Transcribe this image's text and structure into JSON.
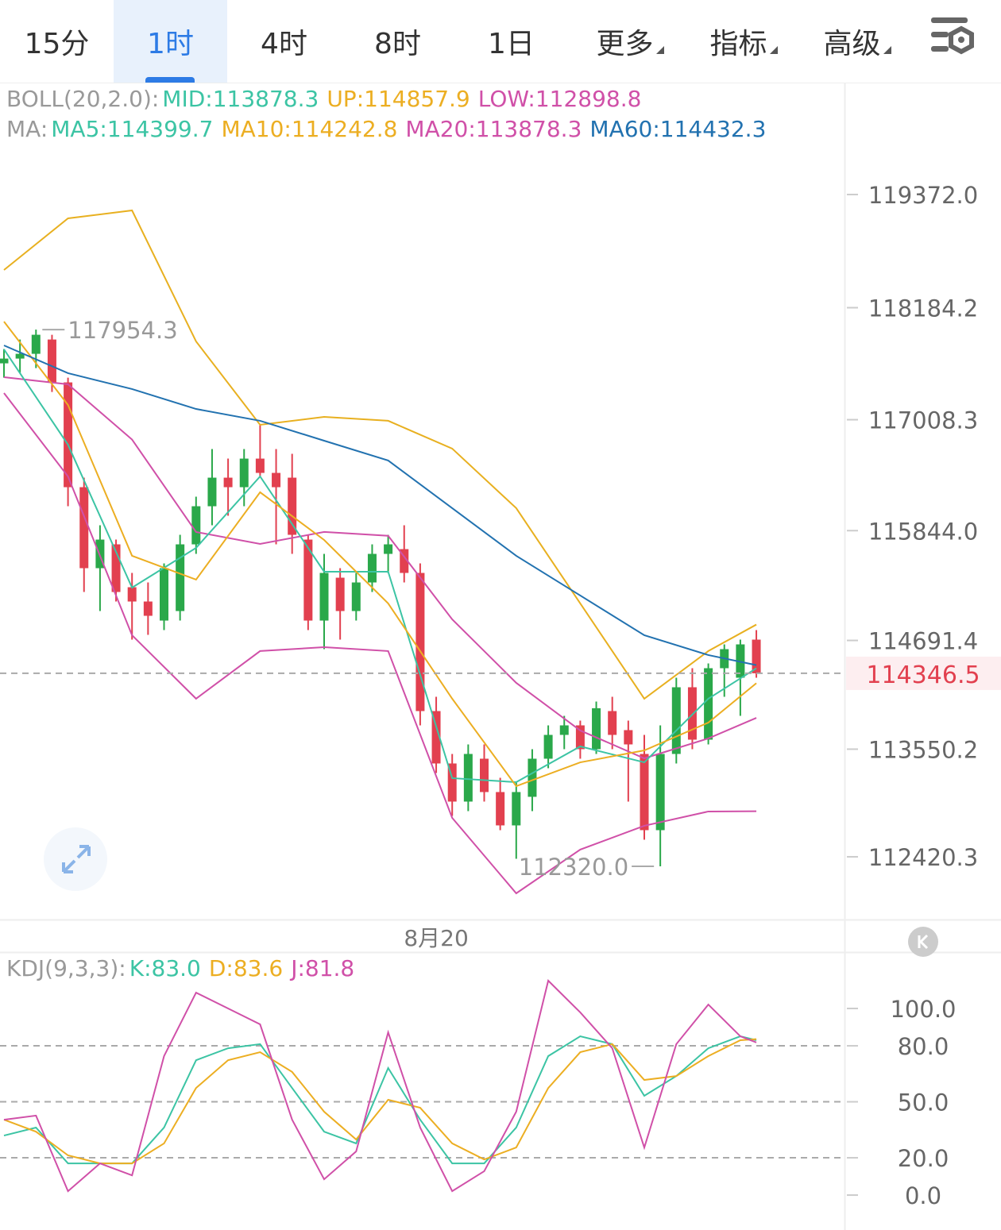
{
  "tabs": [
    {
      "label": "15分"
    },
    {
      "label": "1时",
      "active": true
    },
    {
      "label": "4时"
    },
    {
      "label": "8时"
    },
    {
      "label": "1日"
    },
    {
      "label": "更多",
      "dropdown": true
    },
    {
      "label": "指标",
      "dropdown": true
    },
    {
      "label": "高级",
      "dropdown": true
    }
  ],
  "chart_data": [
    {
      "type": "candlestick",
      "categories": [
        null,
        null,
        null,
        null,
        null,
        null,
        null,
        null,
        null,
        null,
        null,
        null,
        null,
        null,
        null,
        null,
        null,
        null,
        null,
        null,
        null,
        null,
        null,
        null,
        null,
        null,
        null,
        "8月20",
        null,
        null,
        null,
        null,
        null,
        null,
        null,
        null,
        null,
        null,
        null,
        null,
        null,
        null,
        null,
        null,
        null,
        null,
        null,
        null
      ],
      "open": [
        117600,
        117650,
        117700,
        117850,
        117400,
        116300,
        115450,
        115700,
        115250,
        115100,
        114900,
        115000,
        115700,
        116100,
        116400,
        116300,
        116600,
        116450,
        116400,
        115750,
        114900,
        115350,
        115000,
        115300,
        115600,
        115650,
        115400,
        113950,
        113400,
        113000,
        113450,
        113100,
        112750,
        113050,
        113450,
        113700,
        113800,
        113550,
        113950,
        113750,
        113500,
        112700,
        113500,
        114200,
        113650,
        114400,
        114300,
        114700
      ],
      "high": [
        117750,
        117850,
        117954.3,
        117900,
        117450,
        116400,
        115900,
        115750,
        115400,
        115300,
        115500,
        115800,
        116200,
        116700,
        116600,
        116700,
        116950,
        116700,
        116650,
        115800,
        115600,
        115450,
        115400,
        115700,
        115800,
        115900,
        115500,
        114100,
        113500,
        113600,
        113600,
        113250,
        113200,
        113550,
        113800,
        113900,
        113850,
        114050,
        114100,
        113850,
        113700,
        113800,
        114300,
        114400,
        114450,
        114650,
        114700,
        114800
      ],
      "low": [
        117450,
        117500,
        117550,
        117300,
        116100,
        115200,
        115000,
        115100,
        114700,
        114750,
        114800,
        114900,
        115600,
        115900,
        116000,
        116100,
        116400,
        115700,
        115600,
        114800,
        114600,
        114700,
        114900,
        115200,
        115400,
        115300,
        113800,
        113300,
        112850,
        112900,
        113000,
        112700,
        112400,
        112900,
        113350,
        113550,
        113450,
        113500,
        113550,
        113000,
        112600,
        112320,
        113400,
        113550,
        113600,
        114100,
        113900,
        114300
      ],
      "close": [
        117650,
        117700,
        117900,
        117400,
        116300,
        115450,
        115750,
        115200,
        115100,
        114950,
        115450,
        115700,
        116100,
        116400,
        116300,
        116600,
        116450,
        116300,
        115800,
        114900,
        115400,
        115000,
        115300,
        115600,
        115700,
        115400,
        113950,
        113400,
        113000,
        113500,
        113100,
        112750,
        113100,
        113450,
        113700,
        113800,
        113550,
        113980,
        113700,
        113600,
        112700,
        113500,
        114200,
        113650,
        114400,
        114600,
        114650,
        114346.5
      ],
      "up_color": "#2aa84a",
      "down_color": "#e2404f",
      "ylim": [
        111762,
        120547
      ],
      "yticks": [
        {
          "value": 119372,
          "label": "119372.0"
        },
        {
          "value": 118184.2,
          "label": "118184.2"
        },
        {
          "value": 117008.3,
          "label": "117008.3"
        },
        {
          "value": 115844,
          "label": "115844.0"
        },
        {
          "value": 114691.4,
          "label": "114691.4"
        },
        {
          "value": 113550.2,
          "label": "113550.2"
        },
        {
          "value": 112420.3,
          "label": "112420.3"
        }
      ],
      "last_price": 114346.5,
      "high_label": 117954.3,
      "low_label": {
        "value": 112320,
        "label": "112320.0"
      },
      "series": [
        {
          "color": "#e8b020",
          "x": [
            0,
            4,
            8,
            12,
            16,
            20,
            24,
            28,
            32,
            36,
            40,
            44,
            47
          ],
          "values": [
            118580,
            119122,
            119205,
            117830,
            116955,
            117038,
            116997,
            116705,
            116080,
            115080,
            114080,
            114580,
            114857.9
          ]
        },
        {
          "color": "#d050a8",
          "x": [
            0,
            4,
            8,
            12,
            16,
            20,
            24,
            28,
            32,
            36,
            40,
            44,
            47
          ],
          "values": [
            117455,
            117380,
            116800,
            115830,
            115705,
            115830,
            115790,
            114913,
            114246,
            113746,
            113454,
            113663,
            113878.3
          ]
        },
        {
          "color": "#d050a8",
          "x": [
            0,
            4,
            8,
            12,
            16,
            20,
            24,
            28,
            32,
            36,
            40,
            44,
            47
          ],
          "values": [
            117288,
            116413,
            114746,
            114080,
            114580,
            114621,
            114580,
            112829,
            112037,
            112496,
            112746,
            112896,
            112898.8
          ]
        },
        {
          "color": "#3cc4a4",
          "x": [
            0,
            4,
            8,
            12,
            16,
            20,
            24,
            28,
            32,
            36,
            40,
            44,
            47
          ],
          "values": [
            117747,
            116746,
            115246,
            115663,
            116413,
            115413,
            115413,
            113246,
            113204,
            113579,
            113412,
            114080,
            114399.7
          ]
        },
        {
          "color": "#ecae22",
          "x": [
            0,
            4,
            8,
            12,
            16,
            20,
            24,
            28,
            32,
            36,
            40,
            44,
            47
          ],
          "values": [
            118038,
            117163,
            115580,
            115330,
            116247,
            115746,
            115080,
            114080,
            113162,
            113412,
            113537,
            113829,
            114242.8
          ]
        },
        {
          "color": "#2272b0",
          "x": [
            0,
            4,
            8,
            12,
            16,
            20,
            24,
            28,
            32,
            36,
            40,
            44,
            47
          ],
          "values": [
            117788,
            117497,
            117330,
            117121,
            116997,
            116788,
            116580,
            116080,
            115580,
            115163,
            114746,
            114538,
            114432.3
          ]
        }
      ],
      "legends": [
        {
          "prefix": "BOLL(20,2.0):",
          "items": [
            {
              "label": "MID:113878.3",
              "color": "#3cc4a4"
            },
            {
              "label": "UP:114857.9",
              "color": "#ecae22"
            },
            {
              "label": "LOW:112898.8",
              "color": "#d050a8"
            }
          ]
        },
        {
          "prefix": "MA:",
          "items": [
            {
              "label": "MA5:114399.7",
              "color": "#3cc4a4"
            },
            {
              "label": "MA10:114242.8",
              "color": "#ecae22"
            },
            {
              "label": "MA20:113878.3",
              "color": "#d050a8"
            },
            {
              "label": "MA60:114432.3",
              "color": "#2272b0"
            }
          ]
        }
      ]
    },
    {
      "type": "line",
      "title": "KDJ(9,3,3):",
      "x": [
        0,
        2,
        4,
        6,
        8,
        10,
        12,
        14,
        16,
        18,
        20,
        22,
        24,
        26,
        28,
        30,
        32,
        34,
        36,
        38,
        40,
        42,
        44,
        46,
        47
      ],
      "series": [
        {
          "name": "K:83.0",
          "color": "#3cc4a4",
          "values": [
            31.9,
            36.2,
            17.0,
            17.0,
            17.0,
            36.2,
            72.3,
            78.7,
            80.9,
            57.4,
            34.0,
            27.7,
            68.1,
            40.4,
            17.0,
            17.0,
            36.2,
            74.5,
            85.1,
            80.9,
            53.2,
            63.8,
            78.7,
            85.1,
            83.0
          ]
        },
        {
          "name": "D:83.6",
          "color": "#ecae22",
          "values": [
            40.4,
            34.0,
            21.3,
            17.0,
            17.0,
            27.7,
            57.4,
            72.3,
            76.6,
            66.0,
            44.7,
            29.8,
            51.1,
            46.8,
            27.7,
            19.1,
            25.5,
            57.4,
            76.6,
            80.9,
            61.7,
            63.8,
            74.5,
            83.0,
            83.6
          ]
        },
        {
          "name": "J:81.8",
          "color": "#d050a8",
          "values": [
            40.4,
            42.6,
            2.1,
            17.0,
            10.6,
            74.5,
            108.5,
            100,
            91.5,
            40.4,
            8.5,
            23.4,
            87.2,
            36.2,
            2.1,
            12.8,
            44.7,
            114.9,
            97.9,
            78.7,
            25.5,
            80.9,
            102.1,
            85.1,
            81.8
          ]
        }
      ],
      "ylim": [
        -18.7,
        129.8
      ],
      "yticks": [
        {
          "value": 100,
          "label": "100.0"
        },
        {
          "value": 80,
          "label": "80.0"
        },
        {
          "value": 50,
          "label": "50.0"
        },
        {
          "value": 20,
          "label": "20.0"
        },
        {
          "value": 0,
          "label": "0.0"
        }
      ],
      "grid_values": [
        80,
        50,
        20
      ]
    }
  ]
}
